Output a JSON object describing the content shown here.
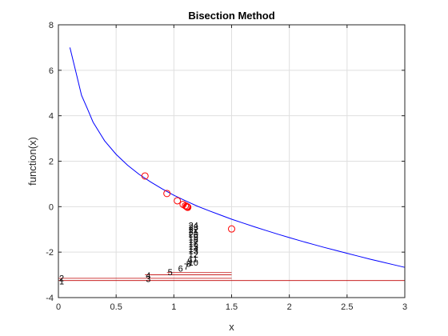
{
  "chart_data": {
    "type": "line",
    "title": "Bisection Method",
    "xlabel": "x",
    "ylabel": "function(x)",
    "xlim": [
      0,
      3
    ],
    "ylim": [
      -4,
      8
    ],
    "xticks": [
      0,
      0.5,
      1,
      1.5,
      2,
      2.5,
      3
    ],
    "xtick_labels": [
      "0",
      "0.5",
      "1",
      "1.5",
      "2",
      "2.5",
      "3"
    ],
    "yticks": [
      -4,
      -2,
      0,
      2,
      4,
      6,
      8
    ],
    "ytick_labels": [
      "-4",
      "-2",
      "0",
      "2",
      "4",
      "6",
      "8"
    ],
    "grid": true,
    "colors": {
      "curve": "#0000ff",
      "markers": "#ff0000",
      "brackets": "#c00000"
    },
    "curve": {
      "x": [
        0.1,
        0.15,
        0.2,
        0.25,
        0.3,
        0.4,
        0.5,
        0.6,
        0.7,
        0.8,
        0.9,
        1.0,
        1.1,
        1.2,
        1.3,
        1.4,
        1.5,
        1.6,
        1.7,
        1.8,
        1.9,
        2.0,
        2.1,
        2.2,
        2.3,
        2.4,
        2.5,
        2.6,
        2.7,
        2.8,
        2.9,
        3.0
      ],
      "y": [
        7.0,
        5.95,
        4.9,
        4.32,
        3.72,
        2.9,
        2.3,
        1.82,
        1.42,
        1.08,
        0.78,
        0.5,
        0.26,
        0.03,
        -0.17,
        -0.36,
        -0.55,
        -0.72,
        -0.89,
        -1.05,
        -1.21,
        -1.36,
        -1.51,
        -1.65,
        -1.79,
        -1.92,
        -2.05,
        -2.18,
        -2.31,
        -2.43,
        -2.55,
        -2.67
      ]
    },
    "midpoints": {
      "x": [
        1.5,
        0.75,
        0.94,
        1.03,
        1.08,
        1.1,
        1.12,
        1.11,
        1.115,
        1.118,
        1.12
      ],
      "y": [
        -0.98,
        1.35,
        0.58,
        0.26,
        0.1,
        0.04,
        -0.02,
        0.01,
        -0.01,
        -0.02,
        -0.03
      ]
    },
    "brackets": [
      {
        "x0": 0,
        "x1": 3,
        "y": -3.25
      },
      {
        "x0": 0,
        "x1": 1.5,
        "y": -3.15
      },
      {
        "x0": 0.75,
        "x1": 1.5,
        "y": -3.0
      },
      {
        "x0": 0.94,
        "x1": 1.5,
        "y": -2.9
      }
    ],
    "iteration_labels": [
      {
        "text": "1",
        "x": 0.0,
        "y": -3.28
      },
      {
        "text": "2",
        "x": 0.0,
        "y": -3.14
      },
      {
        "text": "3",
        "x": 0.75,
        "y": -3.18
      },
      {
        "text": "4",
        "x": 0.75,
        "y": -3.02
      },
      {
        "text": "5",
        "x": 0.94,
        "y": -2.87
      },
      {
        "text": "6",
        "x": 1.03,
        "y": -2.72
      },
      {
        "text": "7",
        "x": 1.08,
        "y": -2.62
      },
      {
        "text": "8",
        "x": 1.1,
        "y": -2.5
      },
      {
        "text": "9",
        "x": 1.11,
        "y": -2.4
      },
      {
        "text": "10",
        "x": 1.12,
        "y": -2.45
      },
      {
        "text": "11",
        "x": 1.12,
        "y": -2.3
      },
      {
        "text": "12",
        "x": 1.12,
        "y": -2.1
      },
      {
        "text": "13",
        "x": 1.12,
        "y": -1.95
      },
      {
        "text": "14",
        "x": 1.12,
        "y": -1.85
      },
      {
        "text": "15",
        "x": 1.12,
        "y": -1.75
      },
      {
        "text": "16",
        "x": 1.12,
        "y": -1.65
      },
      {
        "text": "17",
        "x": 1.12,
        "y": -1.55
      },
      {
        "text": "18",
        "x": 1.12,
        "y": -1.45
      },
      {
        "text": "19",
        "x": 1.12,
        "y": -1.35
      },
      {
        "text": "20",
        "x": 1.12,
        "y": -1.2
      },
      {
        "text": "21",
        "x": 1.12,
        "y": -1.1
      },
      {
        "text": "22",
        "x": 1.12,
        "y": -1.0
      },
      {
        "text": "23",
        "x": 1.12,
        "y": -0.9
      },
      {
        "text": "24",
        "x": 1.12,
        "y": -0.82
      }
    ]
  }
}
